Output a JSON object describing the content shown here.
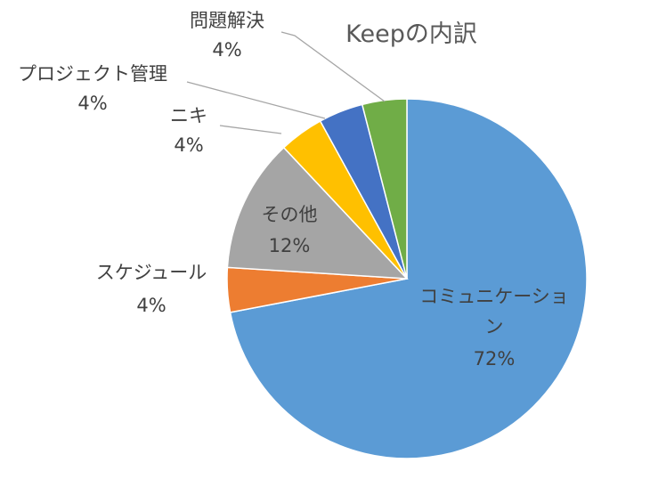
{
  "chart_data": {
    "type": "pie",
    "title": "Keepの内訳",
    "slices": [
      {
        "label": "コミュニケーション",
        "label_lines": [
          "コミュニケーショ",
          "ン"
        ],
        "value": 72,
        "value_text": "72%",
        "color": "#5b9bd5"
      },
      {
        "label": "スケジュール",
        "label_lines": [
          "スケジュール"
        ],
        "value": 4,
        "value_text": "4%",
        "color": "#ed7d31"
      },
      {
        "label": "その他",
        "label_lines": [
          "その他"
        ],
        "value": 12,
        "value_text": "12%",
        "color": "#a5a5a5"
      },
      {
        "label": "ニキ",
        "label_lines": [
          "ニキ"
        ],
        "value": 4,
        "value_text": "4%",
        "color": "#ffc000"
      },
      {
        "label": "プロジェクト管理",
        "label_lines": [
          "プロジェクト管理"
        ],
        "value": 4,
        "value_text": "4%",
        "color": "#4472c4"
      },
      {
        "label": "問題解決",
        "label_lines": [
          "問題解決"
        ],
        "value": 4,
        "value_text": "4%",
        "color": "#70ad47"
      }
    ],
    "legend": "none"
  }
}
